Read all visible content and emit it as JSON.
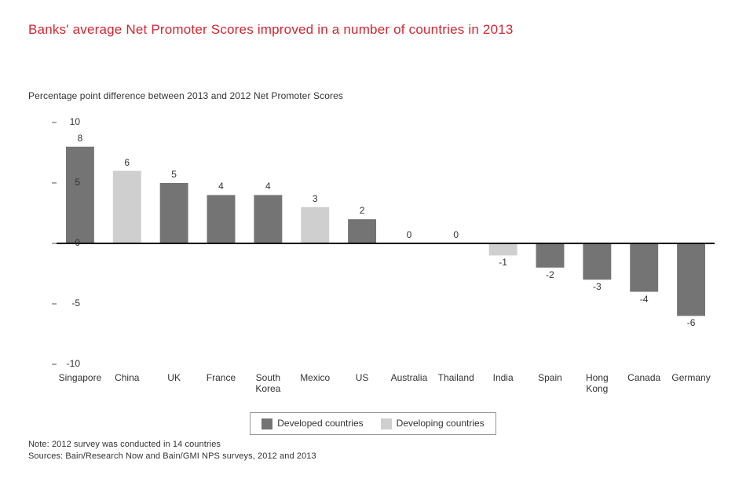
{
  "title": {
    "text": "Banks' average Net Promoter Scores improved in a number of countries in 2013",
    "color": "#d22630",
    "fontsize": 17
  },
  "subtitle": "Percentage point difference between 2013 and 2012 Net Promoter Scores",
  "chart": {
    "type": "bar",
    "ylim": [
      -10,
      10
    ],
    "ytick_step": 5,
    "yticks": [
      -10,
      -5,
      0,
      5,
      10
    ],
    "axis_color": "#000000",
    "axis_width": 2,
    "tick_color": "#555555",
    "bar_width_ratio": 0.6,
    "label_fontsize": 12,
    "series_colors": {
      "developed": "#747474",
      "developing": "#cfcfcf"
    },
    "categories": [
      {
        "label": "Singapore",
        "value": 8,
        "group": "developed"
      },
      {
        "label": "China",
        "value": 6,
        "group": "developing"
      },
      {
        "label": "UK",
        "value": 5,
        "group": "developed"
      },
      {
        "label": "France",
        "value": 4,
        "group": "developed"
      },
      {
        "label": "South\nKorea",
        "value": 4,
        "group": "developed"
      },
      {
        "label": "Mexico",
        "value": 3,
        "group": "developing"
      },
      {
        "label": "US",
        "value": 2,
        "group": "developed"
      },
      {
        "label": "Australia",
        "value": 0,
        "group": "developed"
      },
      {
        "label": "Thailand",
        "value": 0,
        "group": "developing"
      },
      {
        "label": "India",
        "value": -1,
        "group": "developing"
      },
      {
        "label": "Spain",
        "value": -2,
        "group": "developed"
      },
      {
        "label": "Hong\nKong",
        "value": -3,
        "group": "developed"
      },
      {
        "label": "Canada",
        "value": -4,
        "group": "developed"
      },
      {
        "label": "Germany",
        "value": -6,
        "group": "developed"
      }
    ]
  },
  "legend": {
    "items": [
      {
        "label": "Developed countries",
        "color_key": "developed"
      },
      {
        "label": "Developing countries",
        "color_key": "developing"
      }
    ],
    "border_color": "#999999"
  },
  "notes": [
    "Note: 2012 survey was conducted in 14 countries",
    "Sources: Bain/Research Now and Bain/GMI NPS surveys, 2012 and 2013"
  ]
}
